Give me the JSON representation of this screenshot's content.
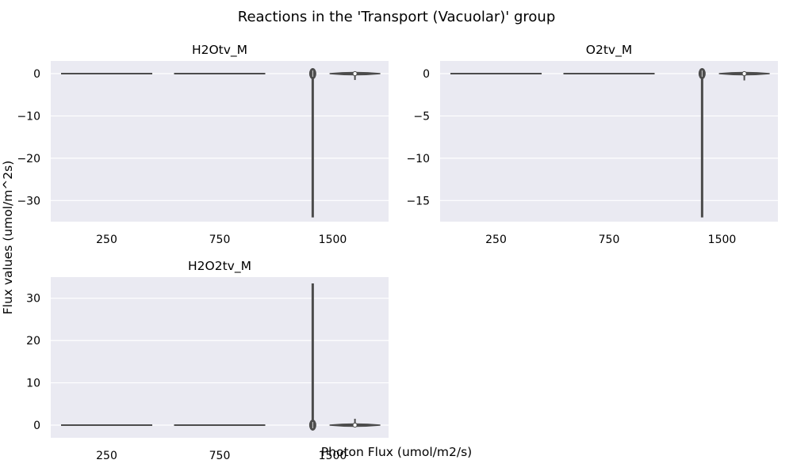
{
  "chart_data": {
    "type": "violin",
    "title": "Reactions in the 'Transport (Vacuolar)' group",
    "xlabel": "Photon Flux (umol/m2/s)",
    "ylabel": "Flux values (umol/m^2s)",
    "grid": true,
    "background": "#eaeaf2",
    "violin_color": "#4c4c4c",
    "panels": [
      {
        "title": "H2Otv_M",
        "categories": [
          "250",
          "750",
          "1500"
        ],
        "ylim": [
          -35,
          3
        ],
        "yticks": [
          0,
          -10,
          -20,
          -30
        ],
        "violins": [
          {
            "category": "250",
            "min": 0,
            "max": 0,
            "median": 0
          },
          {
            "category": "750",
            "min": 0,
            "max": 0,
            "median": 0
          },
          {
            "category": "1500",
            "min": -34,
            "max": 1,
            "median": 0
          },
          {
            "category": "",
            "min": -1.5,
            "max": 0.3,
            "median": 0
          }
        ]
      },
      {
        "title": "O2tv_M",
        "categories": [
          "250",
          "750",
          "1500"
        ],
        "ylim": [
          -17.5,
          1.5
        ],
        "yticks": [
          0,
          -5,
          -10,
          -15
        ],
        "violins": [
          {
            "category": "250",
            "min": 0,
            "max": 0,
            "median": 0
          },
          {
            "category": "750",
            "min": 0,
            "max": 0,
            "median": 0
          },
          {
            "category": "1500",
            "min": -17,
            "max": 0.6,
            "median": 0
          },
          {
            "category": "",
            "min": -0.8,
            "max": 0.2,
            "median": 0
          }
        ]
      },
      {
        "title": "H2O2tv_M",
        "categories": [
          "250",
          "750",
          "1500"
        ],
        "ylim": [
          -3,
          35
        ],
        "yticks": [
          0,
          10,
          20,
          30
        ],
        "violins": [
          {
            "category": "250",
            "min": 0,
            "max": 0,
            "median": 0
          },
          {
            "category": "750",
            "min": 0,
            "max": 0,
            "median": 0
          },
          {
            "category": "1500",
            "min": -1,
            "max": 33.5,
            "median": 0
          },
          {
            "category": "",
            "min": -0.3,
            "max": 1.5,
            "median": 0
          }
        ]
      }
    ]
  }
}
